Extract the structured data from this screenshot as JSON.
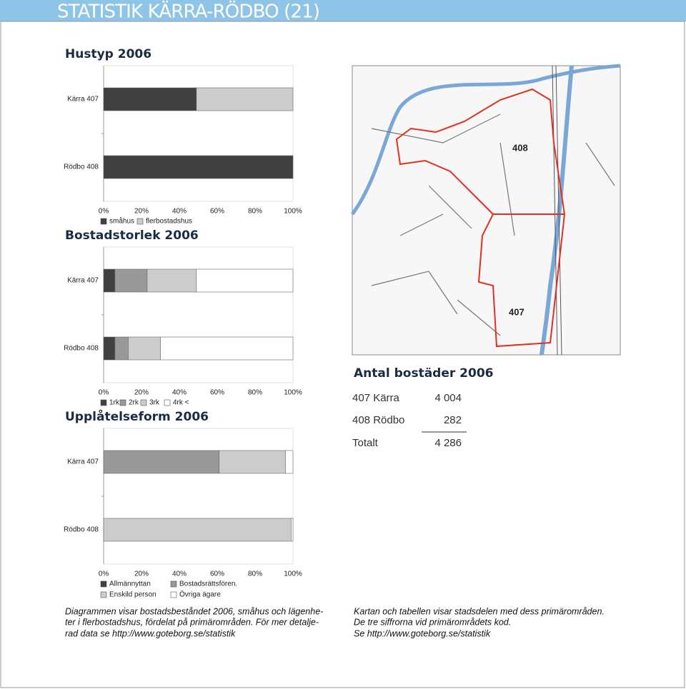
{
  "header": {
    "title": "STATISTIK KÄRRA-RÖDBO (21)"
  },
  "chart_data": [
    {
      "type": "stacked-bar-horizontal",
      "title": "Hustyp 2006",
      "categories": [
        "Kärra 407",
        "Rödbo 408"
      ],
      "series": [
        {
          "name": "småhus",
          "color": "#404040",
          "values": [
            49,
            100
          ]
        },
        {
          "name": "flerbostadshus",
          "color": "#cccccc",
          "values": [
            51,
            0
          ]
        }
      ],
      "xlim": [
        0,
        100
      ],
      "xticks": [
        {
          "value": 0,
          "label": "0%"
        },
        {
          "value": 20,
          "label": "20%"
        },
        {
          "value": 40,
          "label": "40%"
        },
        {
          "value": 60,
          "label": "60%"
        },
        {
          "value": 80,
          "label": "80%"
        },
        {
          "value": 100,
          "label": "100%"
        }
      ]
    },
    {
      "type": "stacked-bar-horizontal",
      "title": "Bostadstorlek 2006",
      "categories": [
        "Kärra 407",
        "Rödbo 408"
      ],
      "series": [
        {
          "name": "1rk",
          "color": "#404040",
          "values": [
            6,
            6
          ]
        },
        {
          "name": "2rk",
          "color": "#999999",
          "values": [
            17,
            7
          ]
        },
        {
          "name": "3rk",
          "color": "#cccccc",
          "values": [
            26,
            17
          ]
        },
        {
          "name": "4rk <",
          "color": "#ffffff",
          "values": [
            51,
            70
          ]
        }
      ],
      "xlim": [
        0,
        100
      ],
      "xticks": [
        {
          "value": 0,
          "label": "0%"
        },
        {
          "value": 20,
          "label": "20%"
        },
        {
          "value": 40,
          "label": "40%"
        },
        {
          "value": 60,
          "label": "60%"
        },
        {
          "value": 80,
          "label": "80%"
        },
        {
          "value": 100,
          "label": "100%"
        }
      ]
    },
    {
      "type": "stacked-bar-horizontal",
      "title": "Upplåtelseform 2006",
      "categories": [
        "Kärra 407",
        "Rödbo 408"
      ],
      "series": [
        {
          "name": "Allmännyttan",
          "color": "#404040",
          "values": [
            0,
            0
          ]
        },
        {
          "name": "Bostadsrättsfören.",
          "color": "#999999",
          "values": [
            61,
            0
          ]
        },
        {
          "name": "Enskild person",
          "color": "#cccccc",
          "values": [
            35,
            99
          ]
        },
        {
          "name": "Övriga ägare",
          "color": "#ffffff",
          "values": [
            4,
            1
          ]
        }
      ],
      "xlim": [
        0,
        100
      ],
      "xticks": [
        {
          "value": 0,
          "label": "0%"
        },
        {
          "value": 20,
          "label": "20%"
        },
        {
          "value": 40,
          "label": "40%"
        },
        {
          "value": 60,
          "label": "60%"
        },
        {
          "value": 80,
          "label": "80%"
        },
        {
          "value": 100,
          "label": "100%"
        }
      ]
    }
  ],
  "map": {
    "labels": [
      "408",
      "407"
    ]
  },
  "table": {
    "title": "Antal bostäder 2006",
    "rows": [
      [
        "407 Kärra",
        "4 004"
      ],
      [
        "408 Rödbo",
        "282"
      ],
      [
        "Totalt",
        "4 286"
      ]
    ]
  },
  "captions": {
    "left": [
      "Diagrammen visar bostadsbeståndet 2006, småhus och lägenhe-",
      "ter i flerbostadshus, fördelat på primärområden. För mer detalje-",
      "rad data se http://www.goteborg.se/statistik"
    ],
    "right": [
      "Kartan och tabellen visar stadsdelen med dess primärområden.",
      "De tre siffrorna vid primärområdets kod.",
      "Se http://www.goteborg.se/statistik"
    ]
  }
}
